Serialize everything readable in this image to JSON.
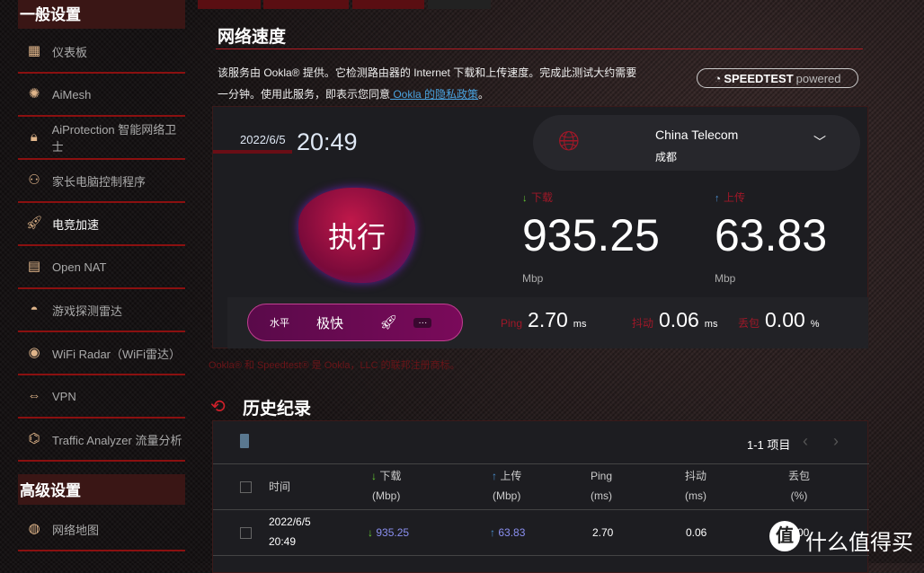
{
  "sidebar": {
    "general_header": "一般设置",
    "advanced_header": "高级设置",
    "items": [
      {
        "label": "仪表板",
        "icon": "dashboard-icon"
      },
      {
        "label": "AiMesh",
        "icon": "aimesh-icon"
      },
      {
        "label": "AiProtection 智能网络卫士",
        "icon": "shield-lock-icon"
      },
      {
        "label": "家长电脑控制程序",
        "icon": "parental-icon"
      },
      {
        "label": "电竞加速",
        "icon": "rocket-icon"
      },
      {
        "label": "Open NAT",
        "icon": "nat-icon"
      },
      {
        "label": "游戏探测雷达",
        "icon": "game-radar-icon"
      },
      {
        "label": "WiFi Radar（WiFi雷达）",
        "icon": "wifi-radar-icon"
      },
      {
        "label": "VPN",
        "icon": "vpn-icon"
      },
      {
        "label": "Traffic Analyzer 流量分析",
        "icon": "traffic-icon"
      }
    ],
    "advanced_items": [
      {
        "label": "网络地图",
        "icon": "globe-icon"
      }
    ],
    "active": "电竞加速"
  },
  "main": {
    "title": "网络速度",
    "desc1": "该服务由 Ookla® 提供。它检测路由器的 Internet 下载和上传速度。完成此测试大约需要",
    "desc2": "一分钟。使用此服务，即表示您同意",
    "privacy_link": " Ookla 的隐私政策",
    "desc_end": "。",
    "badge_brand": "SPEEDTEST",
    "badge_powered": "powered"
  },
  "result": {
    "date": "2022/6/5",
    "time": "20:49",
    "server_name": "China Telecom",
    "server_city": "成都",
    "run_label": "执行",
    "download_label": "下载",
    "download": "935.25",
    "upload_label": "上传",
    "upload": "63.83",
    "unit": "Mbp",
    "mode_label": "水平",
    "mode_value": "极快",
    "more": "···",
    "ping_label": "Ping",
    "ping": "2.70",
    "ping_unit": "ms",
    "jitter_label": "抖动",
    "jitter": "0.06",
    "jitter_unit": "ms",
    "loss_label": "丢包",
    "loss": "0.00",
    "loss_unit": "%"
  },
  "trademark": "Ookla® 和 Speedtest® 是 Ookla，LLC 的联邦注册商标。",
  "history": {
    "title": "历史纪录",
    "pager": "1-1 项目",
    "headers": {
      "time": "时间",
      "download": "下载",
      "download_unit": "(Mbp)",
      "upload": "上传",
      "upload_unit": "(Mbp)",
      "ping": "Ping",
      "ping_unit": "(ms)",
      "jitter": "抖动",
      "jitter_unit": "(ms)",
      "loss": "丢包",
      "loss_unit": "(%)"
    },
    "rows": [
      {
        "date": "2022/6/5",
        "time": "20:49",
        "download": "935.25",
        "upload": "63.83",
        "ping": "2.70",
        "jitter": "0.06",
        "loss": "0.00"
      }
    ]
  },
  "watermark": "什么值得买",
  "colors": {
    "accent": "#a01828",
    "link": "#4aa3e0",
    "value_blue": "#8a8ff0"
  }
}
